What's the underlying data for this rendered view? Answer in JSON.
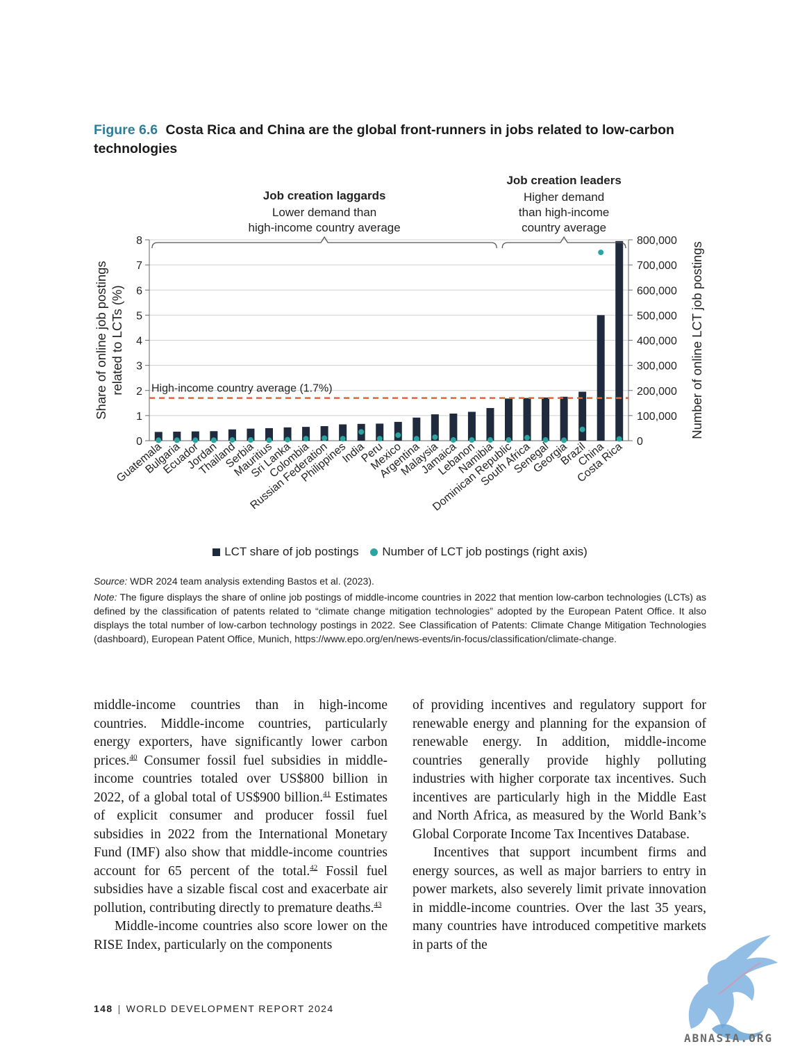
{
  "figure": {
    "number": "Figure 6.6",
    "title": "Costa Rica and China are the global front-runners in jobs related to low-carbon technologies"
  },
  "chart_data": {
    "type": "bar",
    "categories": [
      "Guatemala",
      "Bulgaria",
      "Ecuador",
      "Jordan",
      "Thailand",
      "Serbia",
      "Mauritius",
      "Sri Lanka",
      "Colombia",
      "Russian Federation",
      "Philippines",
      "India",
      "Peru",
      "Mexico",
      "Argentina",
      "Malaysia",
      "Jamaica",
      "Lebanon",
      "Namibia",
      "Dominican Republic",
      "South Africa",
      "Senegal",
      "Georgia",
      "Brazil",
      "China",
      "Costa Rica"
    ],
    "series": [
      {
        "name": "LCT share of job postings",
        "axis": "left",
        "kind": "bar",
        "color": "#1f2a3d",
        "values": [
          0.35,
          0.36,
          0.37,
          0.38,
          0.45,
          0.48,
          0.5,
          0.53,
          0.55,
          0.58,
          0.65,
          0.67,
          0.68,
          0.75,
          0.92,
          1.05,
          1.08,
          1.15,
          1.3,
          1.68,
          1.7,
          1.72,
          1.75,
          1.95,
          5.0,
          7.95
        ]
      },
      {
        "name": "Number of LCT job postings (right axis)",
        "axis": "right",
        "kind": "dot",
        "color": "#2aa5a0",
        "values": [
          2000,
          2000,
          2000,
          2000,
          3000,
          3000,
          2000,
          4000,
          8000,
          10000,
          8000,
          35000,
          8000,
          22000,
          8000,
          14000,
          3000,
          3000,
          3000,
          3000,
          12000,
          3000,
          2000,
          45000,
          750000,
          7000
        ]
      }
    ],
    "ylabel": "Share of online job postings related to LCTs (%)",
    "ylabel_lines": [
      "Share of online job postings",
      "related to LCTs (%)"
    ],
    "y2label": "Number of online LCT job postings",
    "ylim": [
      0,
      8
    ],
    "y2lim": [
      0,
      800000
    ],
    "y_ticks": [
      "0",
      "1",
      "2",
      "3",
      "4",
      "5",
      "6",
      "7",
      "8"
    ],
    "y2_ticks": [
      "0",
      "100,000",
      "200,000",
      "300,000",
      "400,000",
      "500,000",
      "600,000",
      "700,000",
      "800,000"
    ],
    "reference_line": {
      "value": 1.7,
      "label": "High-income country average (1.7%)",
      "color": "#e2623b"
    },
    "groups": [
      {
        "title": "Job creation laggards",
        "lines": [
          "Lower demand than",
          "high-income country average"
        ],
        "from": 0,
        "to": 18
      },
      {
        "title": "Job creation leaders",
        "lines": [
          "Higher demand",
          "than high-income",
          "country average"
        ],
        "from": 19,
        "to": 25
      }
    ],
    "grid": true,
    "legend_position": "bottom"
  },
  "legend": {
    "bar_label": "LCT share of job postings",
    "dot_label": "Number of LCT job postings (right axis)"
  },
  "source": {
    "label": "Source:",
    "text": " WDR 2024 team analysis extending Bastos et al. (2023)."
  },
  "note": {
    "label": "Note:",
    "text": " The figure displays the share of online job postings of middle-income countries in 2022 that mention low-carbon technologies (LCTs) as defined by the classification of patents related to “climate change mitigation technologies” adopted by the European Patent Office. It also displays the total number of low-carbon technology postings in 2022. See Classification of Patents: Climate Change Mitigation Technologies (dashboard), European Patent Office, Munich, https://www.epo.org/en/news-events/in-focus/classification/climate-change."
  },
  "body": {
    "left_p1_a": "middle-income countries than in high-income countries. Middle-income countries, particularly energy exporters, have significantly lower carbon prices.",
    "fn40": "40",
    "left_p1_b": " Consumer fossil fuel subsidies in middle-income countries totaled over US$800 billion in 2022, of a global total of US$900 billion.",
    "fn41": "41",
    "left_p1_c": " Estimates of explicit consumer and producer fossil fuel subsidies in 2022 from the International Monetary Fund (IMF) also show that middle-income countries account for 65 percent of the total.",
    "fn42": "42",
    "left_p1_d": " Fossil fuel subsidies have a sizable fiscal cost and exacerbate air pollution, contributing directly to premature deaths.",
    "fn43": "43",
    "left_p2": "Middle-income countries also score lower on the RISE Index, particularly on the components",
    "right_p1": "of providing incentives and regulatory support for renewable energy and planning for the expansion of renewable energy. In addition, middle-income countries generally provide highly polluting industries with higher corporate tax incentives. Such incentives are particularly high in the Middle East and North Africa, as measured by the World Bank’s Global Corporate Income Tax Incentives Database.",
    "right_p2": "Incentives that support incumbent firms and energy sources, as well as major barriers to entry in power markets, also severely limit private innovation in middle-income countries. Over the last 35 years, many countries have introduced competitive markets in parts of the"
  },
  "footer": {
    "page": "148",
    "publication": "WORLD DEVELOPMENT REPORT 2024"
  },
  "watermark": {
    "text": "ABNASIA.ORG",
    "icon": "griffin-logo-icon"
  }
}
